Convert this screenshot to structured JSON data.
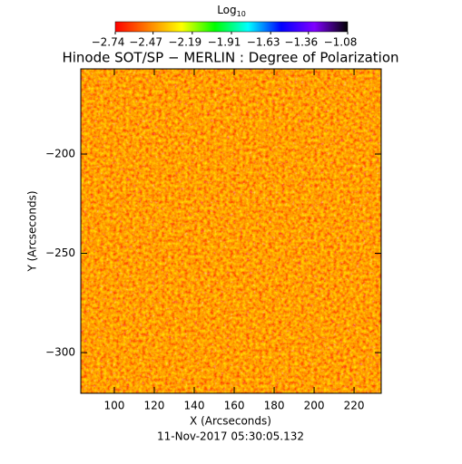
{
  "chart_data": {
    "type": "image",
    "title": "Hinode SOT/SP − MERLIN : Degree of Polarization",
    "colorbar": {
      "label": "Log",
      "label_subscript": "10",
      "lim": [
        -2.74,
        -1.08
      ],
      "ticks": [
        {
          "value": -2.74,
          "label": "−2.74"
        },
        {
          "value": -2.47,
          "label": "−2.47"
        },
        {
          "value": -2.19,
          "label": "−2.19"
        },
        {
          "value": -1.91,
          "label": "−1.91"
        },
        {
          "value": -1.63,
          "label": "−1.63"
        },
        {
          "value": -1.36,
          "label": "−1.36"
        },
        {
          "value": -1.08,
          "label": "−1.08"
        }
      ],
      "colors": [
        "#ff0000",
        "#ff8000",
        "#ffff00",
        "#00ff00",
        "#00ffff",
        "#0000ff",
        "#8000ff",
        "#000000"
      ]
    },
    "x_label": "X (Arcseconds)",
    "y_label": "Y (Arcseconds)",
    "date": "11-Nov-2017 05:30:05.132",
    "xlim": [
      83.2,
      233.6
    ],
    "ylim": [
      -320.5,
      -157.1
    ],
    "xticks": [
      100,
      120,
      140,
      160,
      180,
      200,
      220
    ],
    "yticks": [
      {
        "value": -300,
        "label": "−300"
      },
      {
        "value": -250,
        "label": "−250"
      },
      {
        "value": -200,
        "label": "−200"
      }
    ]
  }
}
